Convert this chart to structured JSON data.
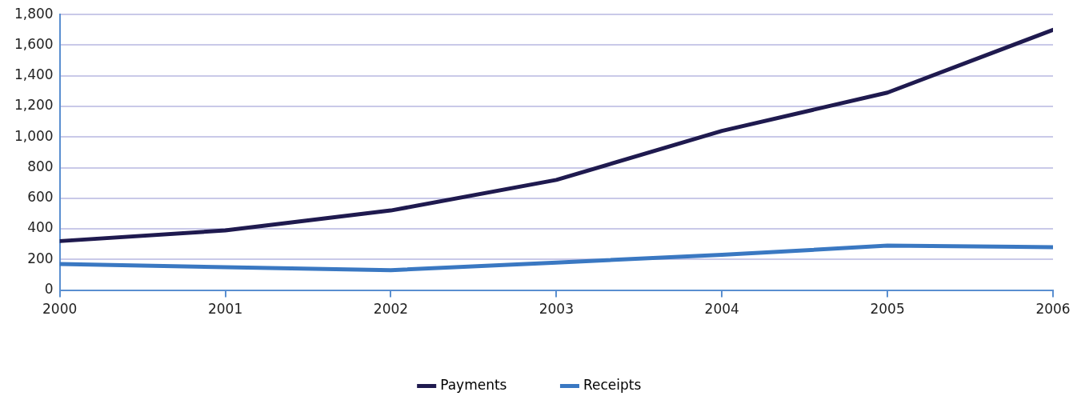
{
  "chart_data": {
    "type": "line",
    "x": [
      2000,
      2001,
      2002,
      2003,
      2004,
      2005,
      2006
    ],
    "series": [
      {
        "name": "Payments",
        "color": "#1f1a4f",
        "values": [
          320,
          390,
          520,
          720,
          1040,
          1290,
          1700
        ]
      },
      {
        "name": "Receipts",
        "color": "#3a78c2",
        "values": [
          170,
          150,
          130,
          180,
          230,
          290,
          280
        ]
      }
    ],
    "xlim": [
      2000,
      2006
    ],
    "xticks": [
      2000,
      2001,
      2002,
      2003,
      2004,
      2005,
      2006
    ],
    "ylim": [
      0,
      1800
    ],
    "yticks": [
      0,
      200,
      400,
      600,
      800,
      {
        "value": 1000,
        "label": "1,000"
      },
      {
        "value": 1200,
        "label": "1,200"
      },
      {
        "value": 1400,
        "label": "1,400"
      },
      {
        "value": 1600,
        "label": "1,600"
      },
      {
        "value": 1800,
        "label": "1,800"
      }
    ],
    "grid": "y",
    "legend": "bottom",
    "marker": "none",
    "line_style": "solid"
  }
}
